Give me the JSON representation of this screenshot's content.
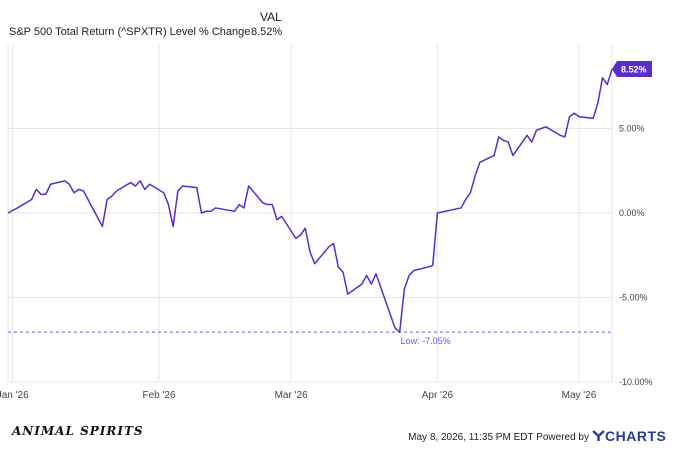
{
  "legend": {
    "column_header": "VAL",
    "series_name": "S&P 500 Total Return (^SPXTR) Level % Change",
    "series_value": "8.52%"
  },
  "colors": {
    "line": "#5b2ccc",
    "grid": "#e6e6e6",
    "low_line": "#6a5ad6",
    "badge_bg": "#5b2ccc",
    "badge_text": "#ffffff",
    "brand": "#2a3b8f"
  },
  "footer": {
    "brand": "ANIMAL SPIRITS",
    "meta": "May 8, 2026, 11:35 PM EDT Powered by",
    "logo_icon": "ycharts-y-icon",
    "logo": "CHARTS"
  },
  "chart_data": {
    "type": "line",
    "title": "",
    "xlabel": "",
    "ylabel": "",
    "ylim": [
      -10,
      10
    ],
    "grid": true,
    "y_ticks": [
      5,
      0,
      -5,
      -10
    ],
    "y_tick_labels": [
      "5.00%",
      "0.00%",
      "-5.00%",
      "-10.00%"
    ],
    "x_tick_labels": [
      "Jan '26",
      "Feb '26",
      "Mar '26",
      "Apr '26",
      "May '26"
    ],
    "x_tick_dates": [
      "2026-01-01",
      "2026-02-01",
      "2026-03-01",
      "2026-04-01",
      "2026-05-01"
    ],
    "x_range": [
      "2025-12-31",
      "2026-05-08"
    ],
    "last_value_label": "8.52%",
    "low_label": "Low: -7.05%",
    "low_value": -7.05,
    "series": [
      {
        "name": "S&P 500 Total Return (^SPXTR) Level % Change",
        "x": [
          "2025-12-31",
          "2026-01-02",
          "2026-01-05",
          "2026-01-06",
          "2026-01-07",
          "2026-01-08",
          "2026-01-09",
          "2026-01-12",
          "2026-01-13",
          "2026-01-14",
          "2026-01-15",
          "2026-01-16",
          "2026-01-20",
          "2026-01-21",
          "2026-01-22",
          "2026-01-23",
          "2026-01-26",
          "2026-01-27",
          "2026-01-28",
          "2026-01-29",
          "2026-01-30",
          "2026-02-02",
          "2026-02-03",
          "2026-02-04",
          "2026-02-05",
          "2026-02-06",
          "2026-02-09",
          "2026-02-10",
          "2026-02-11",
          "2026-02-12",
          "2026-02-13",
          "2026-02-17",
          "2026-02-18",
          "2026-02-19",
          "2026-02-20",
          "2026-02-23",
          "2026-02-24",
          "2026-02-25",
          "2026-02-26",
          "2026-02-27",
          "2026-03-02",
          "2026-03-03",
          "2026-03-04",
          "2026-03-05",
          "2026-03-06",
          "2026-03-09",
          "2026-03-10",
          "2026-03-11",
          "2026-03-12",
          "2026-03-13",
          "2026-03-16",
          "2026-03-17",
          "2026-03-18",
          "2026-03-19",
          "2026-03-20",
          "2026-03-23",
          "2026-03-24",
          "2026-03-25",
          "2026-03-26",
          "2026-03-27",
          "2026-03-30",
          "2026-03-31",
          "2026-04-01",
          "2026-04-06",
          "2026-04-07",
          "2026-04-08",
          "2026-04-09",
          "2026-04-10",
          "2026-04-13",
          "2026-04-14",
          "2026-04-15",
          "2026-04-16",
          "2026-04-17",
          "2026-04-20",
          "2026-04-21",
          "2026-04-22",
          "2026-04-23",
          "2026-04-24",
          "2026-04-27",
          "2026-04-28",
          "2026-04-29",
          "2026-04-30",
          "2026-05-01",
          "2026-05-04",
          "2026-05-05",
          "2026-05-06",
          "2026-05-07",
          "2026-05-08"
        ],
        "values": [
          0.0,
          0.3,
          0.8,
          1.4,
          1.1,
          1.1,
          1.7,
          1.9,
          1.7,
          1.2,
          1.4,
          1.3,
          -0.8,
          0.8,
          1.0,
          1.3,
          1.8,
          1.6,
          1.9,
          1.4,
          1.7,
          1.2,
          0.5,
          -0.8,
          1.3,
          1.6,
          1.5,
          0.0,
          0.1,
          0.1,
          0.3,
          0.1,
          0.5,
          0.3,
          1.6,
          0.6,
          0.5,
          0.5,
          -0.4,
          -0.2,
          -1.5,
          -1.3,
          -0.9,
          -2.3,
          -3.0,
          -2.0,
          -1.8,
          -3.2,
          -3.5,
          -4.8,
          -4.2,
          -3.7,
          -4.2,
          -3.6,
          -4.4,
          -6.8,
          -7.05,
          -4.5,
          -3.7,
          -3.4,
          -3.2,
          -3.1,
          0.0,
          0.3,
          0.8,
          1.2,
          2.2,
          3.0,
          3.4,
          4.5,
          4.3,
          4.2,
          3.4,
          4.6,
          4.2,
          4.9,
          5.0,
          5.1,
          4.6,
          4.5,
          5.7,
          5.9,
          5.7,
          5.6,
          6.5,
          8.0,
          7.6,
          8.52
        ]
      }
    ]
  }
}
